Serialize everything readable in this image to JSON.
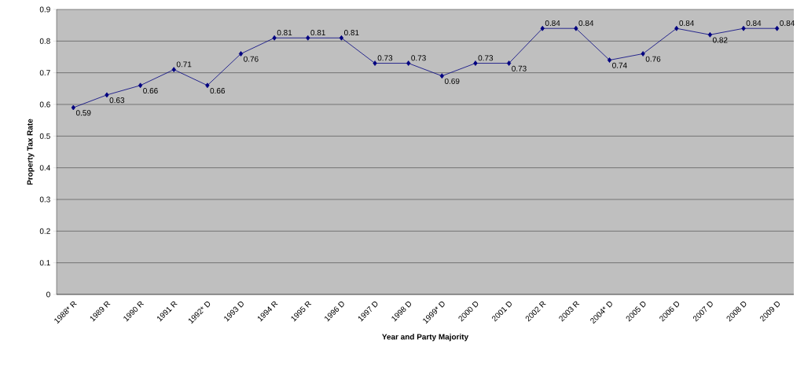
{
  "chart_data": {
    "type": "line",
    "xlabel": "Year and Party Majority",
    "ylabel": "Property Tax Rate",
    "categories": [
      "1988* R",
      "1989 R",
      "1990 R",
      "1991 R",
      "1992* D",
      "1993 D",
      "1994 R",
      "1995 R",
      "1996 D",
      "1997 D",
      "1998 D",
      "1999* D",
      "2000 D",
      "2001 D",
      "2002 R",
      "2003 R",
      "2004* D",
      "2005 D",
      "2006 D",
      "2007 D",
      "2008 D",
      "2009 D"
    ],
    "values": [
      0.59,
      0.63,
      0.66,
      0.71,
      0.66,
      0.76,
      0.81,
      0.81,
      0.81,
      0.73,
      0.73,
      0.69,
      0.73,
      0.73,
      0.84,
      0.84,
      0.74,
      0.76,
      0.84,
      0.82,
      0.84,
      0.84
    ],
    "color": "#000080",
    "marker": "diamond",
    "line_style": "solid",
    "data_labels": true,
    "grid": "y",
    "ylim": [
      0,
      0.9
    ],
    "yticks": [
      0,
      0.1,
      0.2,
      0.3,
      0.4,
      0.5,
      0.6,
      0.7,
      0.8,
      0.9
    ]
  }
}
